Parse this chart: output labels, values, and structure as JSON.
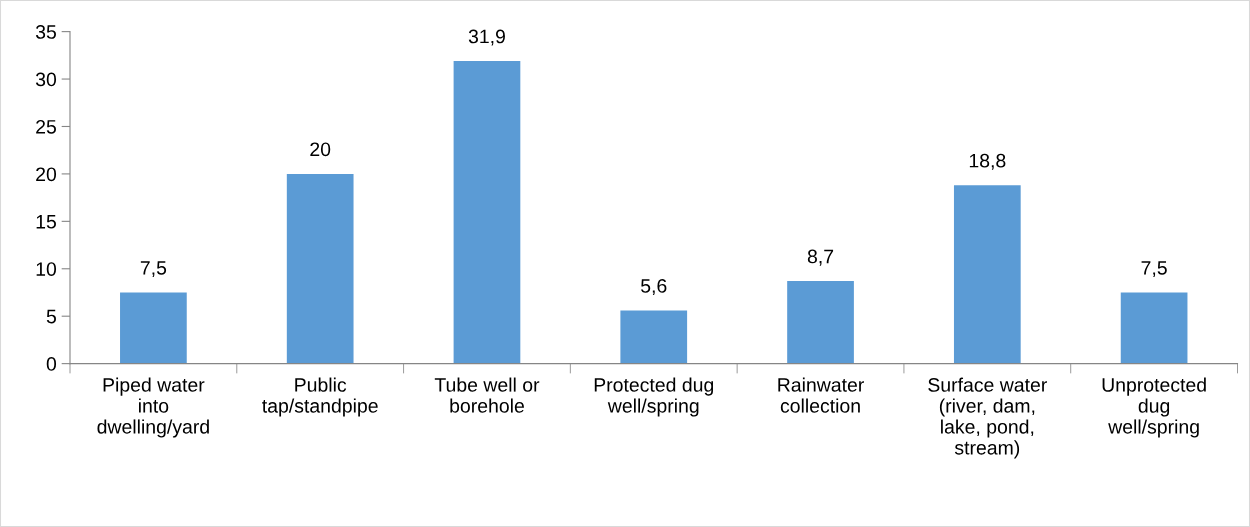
{
  "chart_data": {
    "type": "bar",
    "categories": [
      "Piped water into dwelling/yard",
      "Public tap/standpipe",
      "Tube well or borehole",
      "Protected dug well/spring",
      "Rainwater collection",
      "Surface water (river, dam, lake, pond, stream)",
      "Unprotected dug well/spring"
    ],
    "values": [
      7.5,
      20,
      31.9,
      5.6,
      8.7,
      18.8,
      7.5
    ],
    "value_labels": [
      "7,5",
      "20",
      "31,9",
      "5,6",
      "8,7",
      "18,8",
      "7,5"
    ],
    "color": "#5b9bd5",
    "ylim": [
      0,
      35
    ],
    "yticks": [
      0,
      5,
      10,
      15,
      20,
      25,
      30,
      35
    ],
    "grid": false,
    "legend": false
  }
}
